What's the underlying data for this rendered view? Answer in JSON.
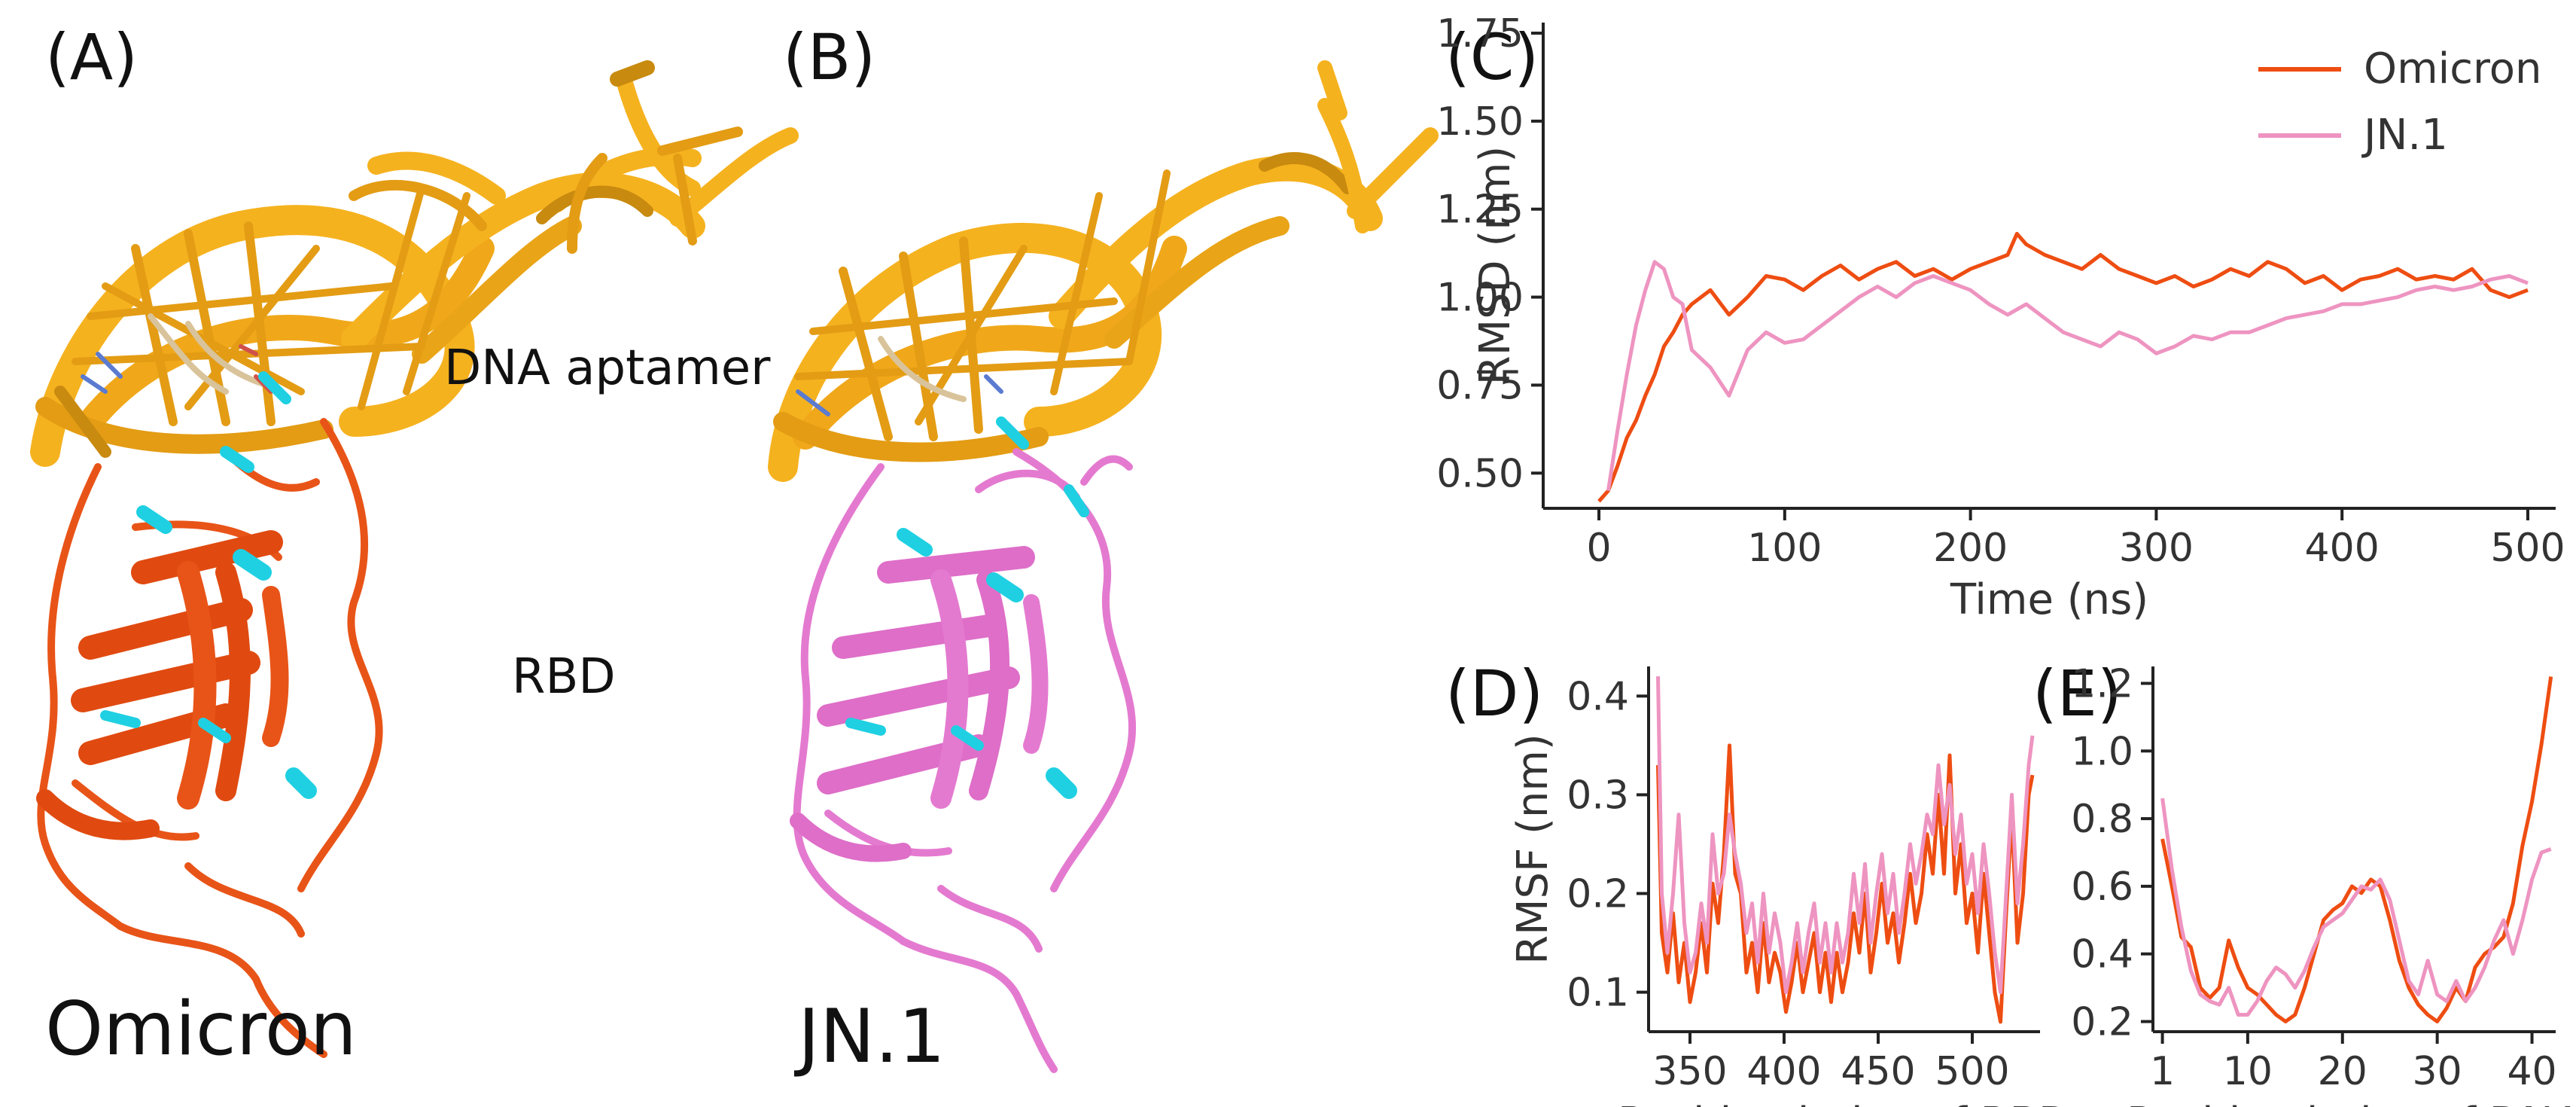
{
  "colors": {
    "omicron": "#ee4d12",
    "jn1": "#ee94c1",
    "dna": "#f5b21f",
    "dna_dark": "#c88a0f",
    "helix_cyan": "#1fd0e2",
    "rbd_omicron": "#e85418",
    "rbd_jn1": "#e47ad0"
  },
  "panels": {
    "A": {
      "label": "(A)",
      "name": "Omicron"
    },
    "B": {
      "label": "(B)",
      "name": "JN.1"
    },
    "dna_label": "DNA aptamer",
    "rbd_label": "RBD"
  },
  "chart_data": [
    {
      "panel": "(C)",
      "type": "line",
      "title": "",
      "xlabel": "Time (ns)",
      "ylabel": "RMSD (nm)",
      "xlim": [
        -30,
        515
      ],
      "ylim": [
        0.4,
        1.78
      ],
      "xticks": [
        "0",
        "100",
        "200",
        "300",
        "400",
        "500"
      ],
      "yticks": [
        "0.50",
        "0.75",
        "1.00",
        "1.25",
        "1.50",
        "1.75"
      ],
      "legend": "top-right",
      "series": [
        {
          "name": "Omicron",
          "x": [
            0,
            5,
            10,
            15,
            20,
            25,
            30,
            35,
            40,
            45,
            50,
            60,
            70,
            80,
            90,
            100,
            110,
            120,
            130,
            140,
            150,
            160,
            170,
            180,
            190,
            200,
            210,
            220,
            225,
            230,
            240,
            250,
            260,
            270,
            280,
            290,
            300,
            310,
            320,
            330,
            340,
            350,
            360,
            370,
            380,
            390,
            400,
            410,
            420,
            430,
            440,
            450,
            460,
            470,
            480,
            490,
            500
          ],
          "y": [
            0.42,
            0.45,
            0.52,
            0.6,
            0.65,
            0.72,
            0.78,
            0.86,
            0.9,
            0.95,
            0.98,
            1.02,
            0.95,
            1.0,
            1.06,
            1.05,
            1.02,
            1.06,
            1.09,
            1.05,
            1.08,
            1.1,
            1.06,
            1.08,
            1.05,
            1.08,
            1.1,
            1.12,
            1.18,
            1.15,
            1.12,
            1.1,
            1.08,
            1.12,
            1.08,
            1.06,
            1.04,
            1.06,
            1.03,
            1.05,
            1.08,
            1.06,
            1.1,
            1.08,
            1.04,
            1.06,
            1.02,
            1.05,
            1.06,
            1.08,
            1.05,
            1.06,
            1.05,
            1.08,
            1.02,
            1.0,
            1.02
          ]
        },
        {
          "name": "JN.1",
          "x": [
            5,
            10,
            15,
            20,
            25,
            30,
            35,
            40,
            45,
            50,
            60,
            70,
            80,
            90,
            100,
            110,
            120,
            130,
            140,
            150,
            160,
            170,
            180,
            190,
            200,
            210,
            220,
            230,
            240,
            250,
            260,
            270,
            280,
            290,
            300,
            310,
            320,
            330,
            340,
            350,
            360,
            370,
            380,
            390,
            400,
            410,
            420,
            430,
            440,
            450,
            460,
            470,
            480,
            490,
            500
          ],
          "y": [
            0.45,
            0.62,
            0.78,
            0.92,
            1.02,
            1.1,
            1.08,
            1.0,
            0.98,
            0.85,
            0.8,
            0.72,
            0.85,
            0.9,
            0.87,
            0.88,
            0.92,
            0.96,
            1.0,
            1.03,
            1.0,
            1.04,
            1.06,
            1.04,
            1.02,
            0.98,
            0.95,
            0.98,
            0.94,
            0.9,
            0.88,
            0.86,
            0.9,
            0.88,
            0.84,
            0.86,
            0.89,
            0.88,
            0.9,
            0.9,
            0.92,
            0.94,
            0.95,
            0.96,
            0.98,
            0.98,
            0.99,
            1.0,
            1.02,
            1.03,
            1.02,
            1.03,
            1.05,
            1.06,
            1.04
          ]
        }
      ]
    },
    {
      "panel": "(D)",
      "type": "line",
      "title": "",
      "xlabel": "Residue index of RBD",
      "ylabel": "RMSF (nm)",
      "xlim": [
        328,
        536
      ],
      "ylim": [
        0.06,
        0.43
      ],
      "xticks": [
        "350",
        "400",
        "450",
        "500"
      ],
      "yticks": [
        "0.1",
        "0.2",
        "0.3",
        "0.4"
      ],
      "series": [
        {
          "name": "Omicron",
          "x": [
            333,
            335,
            338,
            341,
            344,
            347,
            350,
            353,
            356,
            359,
            362,
            365,
            368,
            371,
            374,
            377,
            380,
            383,
            386,
            389,
            392,
            395,
            398,
            401,
            404,
            407,
            410,
            413,
            416,
            419,
            422,
            425,
            428,
            431,
            434,
            437,
            440,
            443,
            446,
            449,
            452,
            455,
            458,
            461,
            464,
            467,
            470,
            473,
            476,
            479,
            482,
            485,
            488,
            491,
            494,
            497,
            500,
            503,
            506,
            509,
            512,
            515,
            518,
            521,
            524,
            527,
            530,
            532
          ],
          "y": [
            0.33,
            0.16,
            0.12,
            0.18,
            0.11,
            0.15,
            0.09,
            0.12,
            0.17,
            0.12,
            0.21,
            0.17,
            0.24,
            0.35,
            0.22,
            0.2,
            0.12,
            0.15,
            0.1,
            0.17,
            0.11,
            0.14,
            0.12,
            0.08,
            0.11,
            0.15,
            0.1,
            0.13,
            0.16,
            0.1,
            0.14,
            0.09,
            0.14,
            0.1,
            0.13,
            0.18,
            0.14,
            0.2,
            0.12,
            0.16,
            0.21,
            0.15,
            0.18,
            0.13,
            0.17,
            0.22,
            0.17,
            0.2,
            0.26,
            0.22,
            0.3,
            0.22,
            0.34,
            0.2,
            0.25,
            0.17,
            0.2,
            0.14,
            0.22,
            0.16,
            0.1,
            0.07,
            0.18,
            0.28,
            0.15,
            0.2,
            0.3,
            0.32
          ]
        },
        {
          "name": "JN.1",
          "x": [
            333,
            335,
            338,
            341,
            344,
            347,
            350,
            353,
            356,
            359,
            362,
            365,
            368,
            371,
            374,
            377,
            380,
            383,
            386,
            389,
            392,
            395,
            398,
            401,
            404,
            407,
            410,
            413,
            416,
            419,
            422,
            425,
            428,
            431,
            434,
            437,
            440,
            443,
            446,
            449,
            452,
            455,
            458,
            461,
            464,
            467,
            470,
            473,
            476,
            479,
            482,
            485,
            488,
            491,
            494,
            497,
            500,
            503,
            506,
            509,
            512,
            515,
            518,
            521,
            524,
            527,
            530,
            532
          ],
          "y": [
            0.42,
            0.2,
            0.14,
            0.2,
            0.28,
            0.17,
            0.12,
            0.14,
            0.19,
            0.15,
            0.26,
            0.2,
            0.22,
            0.28,
            0.24,
            0.21,
            0.16,
            0.19,
            0.13,
            0.2,
            0.14,
            0.18,
            0.15,
            0.1,
            0.13,
            0.17,
            0.12,
            0.16,
            0.19,
            0.13,
            0.17,
            0.12,
            0.17,
            0.13,
            0.16,
            0.22,
            0.17,
            0.23,
            0.15,
            0.2,
            0.24,
            0.18,
            0.22,
            0.16,
            0.2,
            0.25,
            0.21,
            0.24,
            0.28,
            0.26,
            0.33,
            0.27,
            0.31,
            0.24,
            0.28,
            0.21,
            0.24,
            0.18,
            0.25,
            0.2,
            0.14,
            0.1,
            0.2,
            0.3,
            0.19,
            0.25,
            0.33,
            0.36
          ]
        }
      ]
    },
    {
      "panel": "(E)",
      "type": "line",
      "title": "",
      "xlabel": "Residue index of DNA",
      "ylabel": "",
      "xlim": [
        0,
        42.5
      ],
      "ylim": [
        0.17,
        1.25
      ],
      "xticks": [
        "1",
        "10",
        "20",
        "30",
        "40"
      ],
      "yticks": [
        "0.2",
        "0.4",
        "0.6",
        "0.8",
        "1.0",
        "1.2"
      ],
      "series": [
        {
          "name": "Omicron",
          "x": [
            1,
            2,
            3,
            4,
            5,
            6,
            7,
            8,
            9,
            10,
            11,
            12,
            13,
            14,
            15,
            16,
            17,
            18,
            19,
            20,
            21,
            22,
            23,
            24,
            25,
            26,
            27,
            28,
            29,
            30,
            31,
            32,
            33,
            34,
            35,
            36,
            37,
            38,
            39,
            40,
            41,
            42
          ],
          "y": [
            0.74,
            0.6,
            0.45,
            0.42,
            0.3,
            0.27,
            0.3,
            0.44,
            0.36,
            0.3,
            0.28,
            0.25,
            0.22,
            0.2,
            0.22,
            0.3,
            0.4,
            0.5,
            0.53,
            0.55,
            0.6,
            0.58,
            0.62,
            0.6,
            0.5,
            0.38,
            0.3,
            0.25,
            0.22,
            0.2,
            0.24,
            0.3,
            0.26,
            0.36,
            0.4,
            0.42,
            0.45,
            0.55,
            0.72,
            0.85,
            1.02,
            1.22
          ]
        },
        {
          "name": "JN.1",
          "x": [
            1,
            2,
            3,
            4,
            5,
            6,
            7,
            8,
            9,
            10,
            11,
            12,
            13,
            14,
            15,
            16,
            17,
            18,
            19,
            20,
            21,
            22,
            23,
            24,
            25,
            26,
            27,
            28,
            29,
            30,
            31,
            32,
            33,
            34,
            35,
            36,
            37,
            38,
            39,
            40,
            41,
            42
          ],
          "y": [
            0.86,
            0.65,
            0.48,
            0.35,
            0.28,
            0.26,
            0.25,
            0.3,
            0.22,
            0.22,
            0.26,
            0.32,
            0.36,
            0.34,
            0.3,
            0.35,
            0.42,
            0.48,
            0.5,
            0.52,
            0.56,
            0.6,
            0.59,
            0.62,
            0.56,
            0.44,
            0.32,
            0.28,
            0.38,
            0.28,
            0.26,
            0.32,
            0.26,
            0.3,
            0.36,
            0.44,
            0.5,
            0.4,
            0.5,
            0.62,
            0.7,
            0.71
          ]
        }
      ]
    }
  ]
}
